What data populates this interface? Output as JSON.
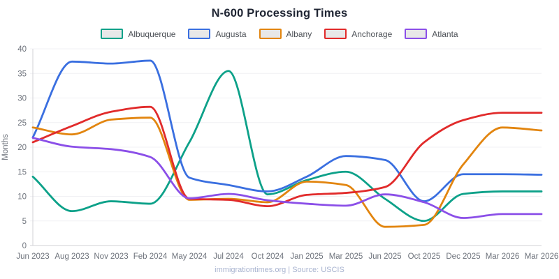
{
  "title": "N-600 Processing Times",
  "y_axis_label": "Months",
  "footer": "immigrationtimes.org | Source: USCIS",
  "colors": {
    "title_text": "#1f2533",
    "axis_text": "#6e737c",
    "grid_line": "#f1f1f4",
    "axis_line": "#d0d0d6",
    "legend_text": "#4d5157",
    "legend_swatch_fill": "#e8e8e8",
    "footer_text": "#a9b4d0",
    "background": "#ffffff"
  },
  "chart_data": {
    "type": "line",
    "title": "N-600 Processing Times",
    "xlabel": "",
    "ylabel": "Months",
    "ylim": [
      0,
      40
    ],
    "yticks": [
      0,
      5,
      10,
      15,
      20,
      25,
      30,
      35,
      40
    ],
    "grid": true,
    "legend_position": "top",
    "x": [
      "Jun 2023",
      "Aug 2023",
      "Nov 2023",
      "Feb 2024",
      "May 2024",
      "Jul 2024",
      "Oct 2024",
      "Jan 2025",
      "Mar 2025",
      "Jun 2025",
      "Oct 2025",
      "Dec 2025",
      "Mar 2026",
      "Mar 2026"
    ],
    "series": [
      {
        "name": "Albuquerque",
        "color": "#0da189",
        "values": [
          14,
          7,
          9,
          8.5,
          21,
          35.5,
          10.4,
          13.3,
          15,
          9.5,
          5,
          10.5,
          11,
          11
        ]
      },
      {
        "name": "Augusta",
        "color": "#3a6fe0",
        "values": [
          22,
          37.4,
          37,
          37.6,
          13.8,
          12.3,
          11,
          14,
          18.2,
          17.4,
          9,
          14.5,
          14.5,
          14.4
        ]
      },
      {
        "name": "Albany",
        "color": "#e2850f",
        "values": [
          24,
          22.6,
          25.6,
          26,
          9.3,
          9.5,
          8.8,
          13,
          12.3,
          3.8,
          4.2,
          16.5,
          24,
          23.4
        ]
      },
      {
        "name": "Anchorage",
        "color": "#e12b2b",
        "values": [
          21,
          24.3,
          27.2,
          28.2,
          9.5,
          9.3,
          8,
          10.3,
          10.7,
          11.9,
          21,
          25.5,
          27,
          27
        ]
      },
      {
        "name": "Atlanta",
        "color": "#8b4fe8",
        "values": [
          21.9,
          20.1,
          19.6,
          18,
          9.6,
          10.5,
          9.2,
          8.5,
          8.1,
          10.4,
          8.8,
          5.6,
          6.4,
          6.4
        ]
      }
    ]
  }
}
